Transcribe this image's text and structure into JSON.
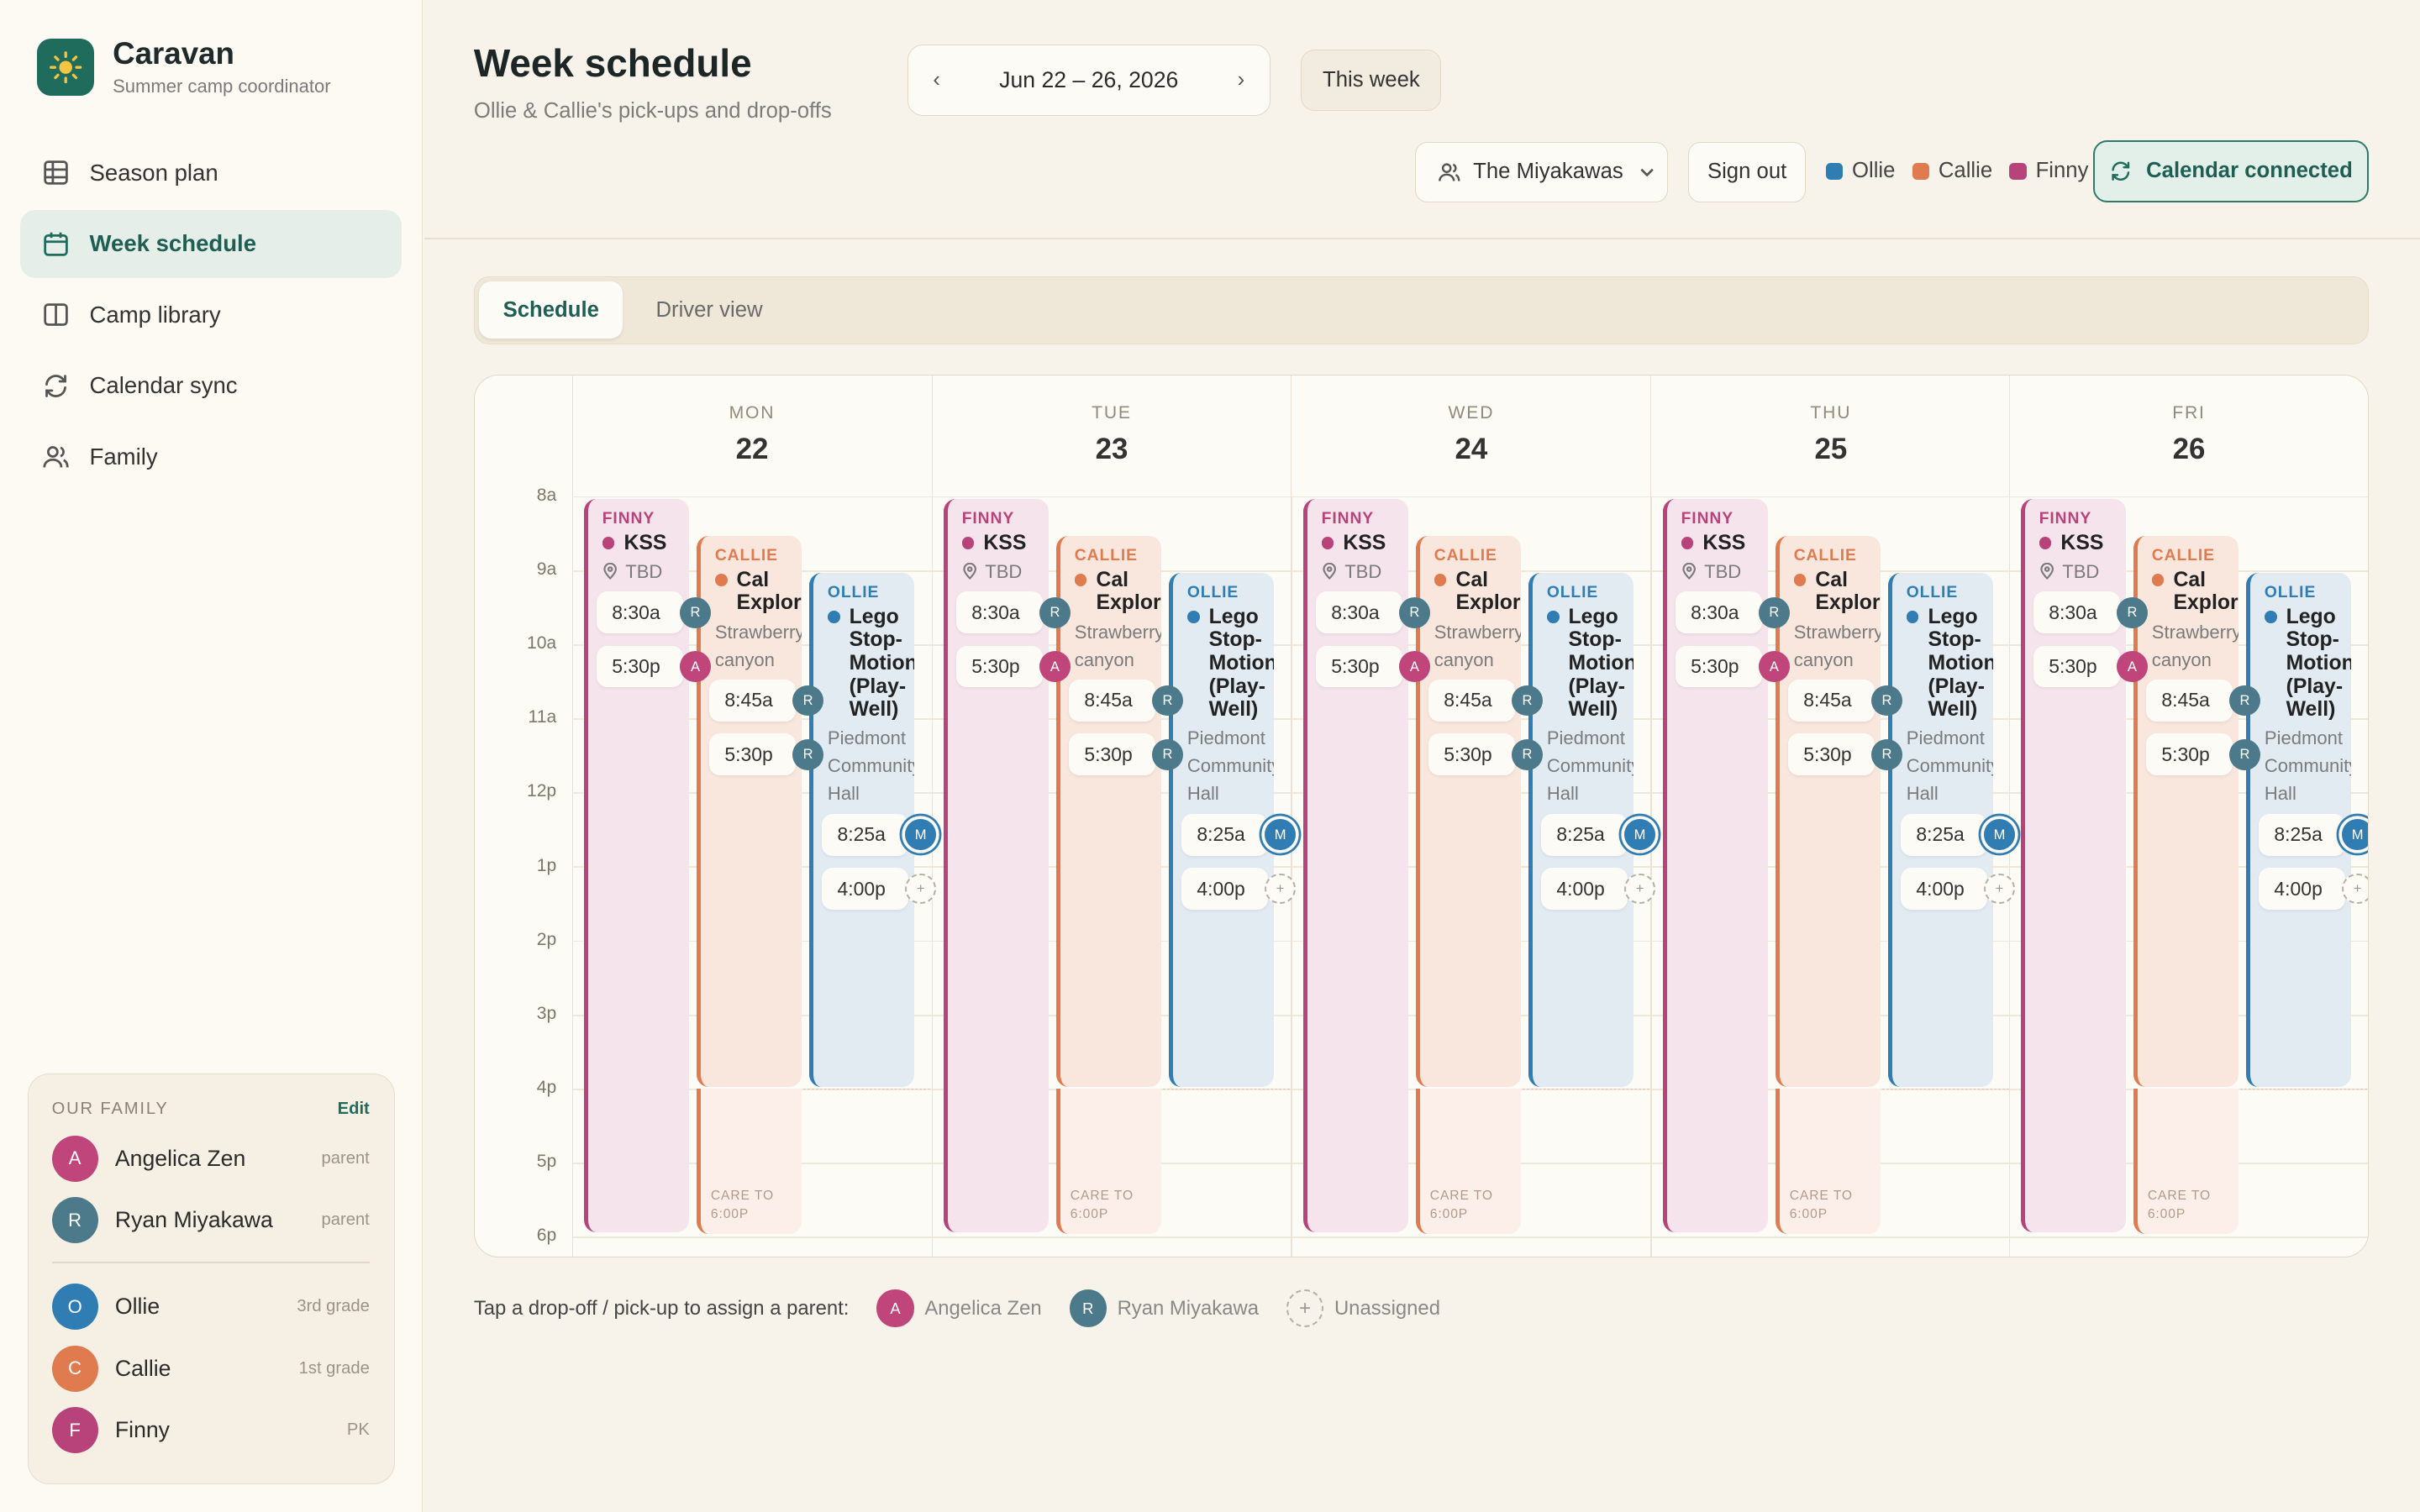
{
  "app": {
    "name": "Caravan",
    "tagline": "Summer camp coordinator",
    "icon": "sun-icon"
  },
  "nav": [
    {
      "label": "Season plan",
      "icon": "grid-icon"
    },
    {
      "label": "Week schedule",
      "icon": "calendar-icon",
      "active": true
    },
    {
      "label": "Camp library",
      "icon": "book-icon"
    },
    {
      "label": "Calendar sync",
      "icon": "sync-icon"
    },
    {
      "label": "Family",
      "icon": "people-icon"
    }
  ],
  "family_card": {
    "heading": "OUR FAMILY",
    "edit": "Edit",
    "parents": [
      {
        "initial": "A",
        "name": "Angelica Zen",
        "role": "parent",
        "color": "#c0457a"
      },
      {
        "initial": "R",
        "name": "Ryan Miyakawa",
        "role": "parent",
        "color": "#4d7a8a"
      }
    ],
    "kids": [
      {
        "initial": "O",
        "name": "Ollie",
        "grade": "3rd grade",
        "color": "#2f7db3"
      },
      {
        "initial": "C",
        "name": "Callie",
        "grade": "1st grade",
        "color": "#e07b4f"
      },
      {
        "initial": "F",
        "name": "Finny",
        "grade": "PK",
        "color": "#b8437a"
      }
    ]
  },
  "header": {
    "title": "Week schedule",
    "subtitle": "Ollie & Callie's pick-ups and drop-offs",
    "prev": "‹",
    "next": "›",
    "date_range": "Jun 22 – 26, 2026",
    "this_week": "This week",
    "family_select": "The Miyakawas",
    "sign_out": "Sign out",
    "legend": [
      {
        "name": "Ollie",
        "color": "#2f7db3"
      },
      {
        "name": "Callie",
        "color": "#e07b4f"
      },
      {
        "name": "Finny",
        "color": "#b8437a"
      }
    ],
    "calendar_connected": "Calendar connected"
  },
  "tabs": [
    "Schedule",
    "Driver view"
  ],
  "hours": [
    "8a",
    "9a",
    "10a",
    "11a",
    "12p",
    "1p",
    "2p",
    "3p",
    "4p",
    "5p",
    "6p"
  ],
  "days": [
    {
      "dow": "MON",
      "date": "22"
    },
    {
      "dow": "TUE",
      "date": "23"
    },
    {
      "dow": "WED",
      "date": "24"
    },
    {
      "dow": "THU",
      "date": "25"
    },
    {
      "dow": "FRI",
      "date": "26"
    }
  ],
  "events": [
    {
      "kid": "FINNY",
      "name": "KSS",
      "location": "TBD",
      "dropoff": "8:30a",
      "dropoff_driver": "R",
      "pickup": "5:30p",
      "pickup_driver": "A"
    },
    {
      "kid": "CALLIE",
      "name": "Cal Explorers",
      "location": "Strawberry canyon",
      "dropoff": "8:45a",
      "dropoff_driver": "R",
      "pickup": "5:30p",
      "pickup_driver": "R",
      "care_label": "CARE TO",
      "care_time": "6:00P"
    },
    {
      "kid": "OLLIE",
      "name": "Lego Stop-Motion (Play-Well)",
      "location": "Piedmont Community Hall",
      "dropoff": "8:25a",
      "dropoff_driver": "M",
      "pickup": "4:00p",
      "pickup_driver": "+"
    }
  ],
  "footer": {
    "instruction": "Tap a drop-off / pick-up to assign a parent:",
    "items": [
      {
        "initial": "A",
        "name": "Angelica Zen",
        "color": "#c0457a"
      },
      {
        "initial": "R",
        "name": "Ryan Miyakawa",
        "color": "#4d7a8a"
      },
      {
        "initial": "+",
        "name": "Unassigned"
      }
    ]
  }
}
